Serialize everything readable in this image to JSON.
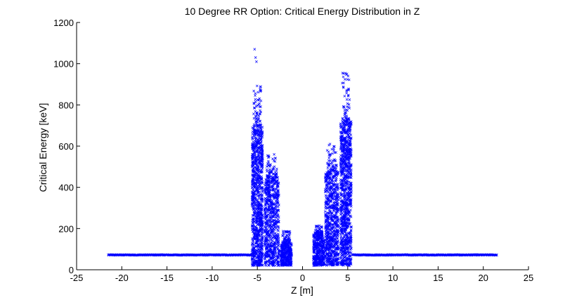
{
  "chart_data": {
    "type": "scatter",
    "title": "10 Degree RR Option: Critical Energy Distribution in Z",
    "xlabel": "Z [m]",
    "ylabel": "Critical Energy [keV]",
    "xlim": [
      -25,
      25
    ],
    "ylim": [
      0,
      1200
    ],
    "x_ticks": [
      -25,
      -20,
      -15,
      -10,
      -5,
      0,
      5,
      10,
      15,
      20,
      25
    ],
    "y_ticks": [
      0,
      200,
      400,
      600,
      800,
      1000,
      1200
    ],
    "grid": false,
    "marker": "x",
    "color": "#0000ff",
    "series": [
      {
        "line_segments": [
          {
            "x_start": -21.5,
            "x_end": -5.6,
            "y": 72
          },
          {
            "x_start": 5.5,
            "x_end": 21.5,
            "y": 72
          }
        ],
        "clusters": [
          {
            "x_range": [
              -5.6,
              -4.4
            ],
            "y_range": [
              20,
              900
            ],
            "dense_top": 700,
            "outliers": [
              [
                -5.3,
                1070
              ],
              [
                -5.2,
                1030
              ],
              [
                -5.1,
                1010
              ]
            ]
          },
          {
            "x_range": [
              -4.2,
              -2.6
            ],
            "y_range": [
              20,
              560
            ],
            "dense_top": 450,
            "outliers": []
          },
          {
            "x_range": [
              -2.4,
              -1.2
            ],
            "y_range": [
              20,
              190
            ],
            "dense_top": 130,
            "outliers": []
          },
          {
            "x_range": [
              1.2,
              2.4
            ],
            "y_range": [
              20,
              215
            ],
            "dense_top": 170,
            "outliers": []
          },
          {
            "x_range": [
              2.5,
              4.0
            ],
            "y_range": [
              20,
              610
            ],
            "dense_top": 480,
            "outliers": []
          },
          {
            "x_range": [
              4.2,
              5.4
            ],
            "y_range": [
              20,
              960
            ],
            "dense_top": 720,
            "outliers": []
          }
        ]
      }
    ]
  }
}
